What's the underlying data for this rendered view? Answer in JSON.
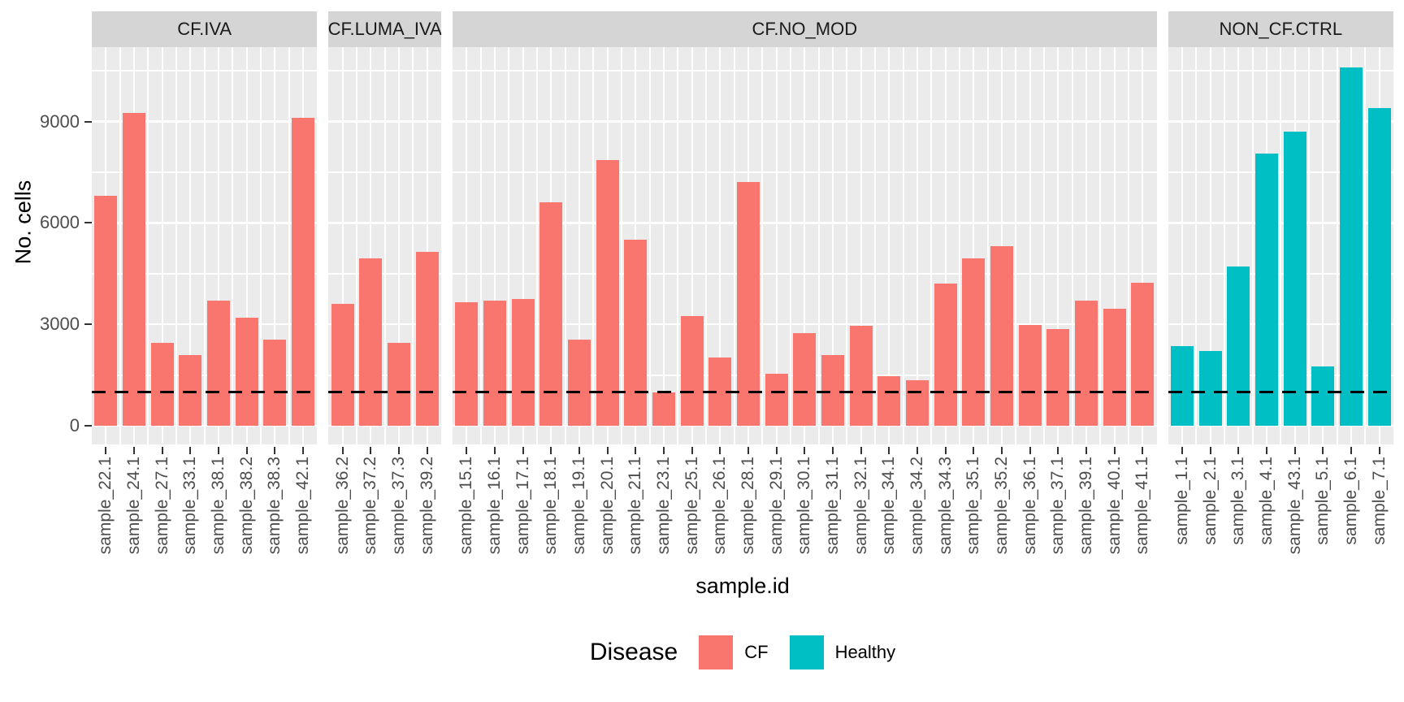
{
  "chart_data": {
    "type": "bar",
    "title": "",
    "xlabel": "sample.id",
    "ylabel": "No. cells",
    "ylim": [
      0,
      11200
    ],
    "yticks": [
      0,
      3000,
      6000,
      9000
    ],
    "minor_gridlines": [
      1500,
      4500,
      7500,
      10500
    ],
    "grid": true,
    "threshold_line": {
      "value": 1000,
      "style": "dashed",
      "color": "#000000"
    },
    "legend": {
      "title": "Disease",
      "position": "bottom",
      "entries": [
        {
          "label": "CF",
          "color": "#F8766D"
        },
        {
          "label": "Healthy",
          "color": "#00BFC4"
        }
      ]
    },
    "facets": [
      {
        "label": "CF.IVA",
        "group": "CF",
        "categories": [
          "sample_22.1",
          "sample_24.1",
          "sample_27.1",
          "sample_33.1",
          "sample_38.1",
          "sample_38.2",
          "sample_38.3",
          "sample_42.1"
        ],
        "values": [
          6800,
          9250,
          2450,
          2100,
          3700,
          3200,
          2550,
          9100
        ]
      },
      {
        "label": "CF.LUMA_IVA",
        "group": "CF",
        "categories": [
          "sample_36.2",
          "sample_37.2",
          "sample_37.3",
          "sample_39.2"
        ],
        "values": [
          3600,
          4950,
          2450,
          5150
        ]
      },
      {
        "label": "CF.NO_MOD",
        "group": "CF",
        "categories": [
          "sample_15.1",
          "sample_16.1",
          "sample_17.1",
          "sample_18.1",
          "sample_19.1",
          "sample_20.1",
          "sample_21.1",
          "sample_23.1",
          "sample_25.1",
          "sample_26.1",
          "sample_28.1",
          "sample_29.1",
          "sample_30.1",
          "sample_31.1",
          "sample_32.1",
          "sample_34.1",
          "sample_34.2",
          "sample_34.3",
          "sample_35.1",
          "sample_35.2",
          "sample_36.1",
          "sample_37.1",
          "sample_39.1",
          "sample_40.1",
          "sample_41.1"
        ],
        "values": [
          3650,
          3700,
          3750,
          6600,
          2550,
          7850,
          5500,
          980,
          3250,
          2030,
          7200,
          1530,
          2750,
          2100,
          2950,
          1460,
          1340,
          4200,
          4950,
          5300,
          2980,
          2850,
          3700,
          3470,
          4230
        ]
      },
      {
        "label": "NON_CF.CTRL",
        "group": "Healthy",
        "categories": [
          "sample_1.1",
          "sample_2.1",
          "sample_3.1",
          "sample_4.1",
          "sample_43.1",
          "sample_5.1",
          "sample_6.1",
          "sample_7.1"
        ],
        "values": [
          2350,
          2200,
          4700,
          8050,
          8700,
          1750,
          10600,
          9400
        ]
      }
    ]
  },
  "style": {
    "panel_bg": "#EBEBEB",
    "strip_bg": "#D5D5D5",
    "axis_text_color": "#4D4D4D",
    "strip_text_color": "#1A1A1A"
  }
}
